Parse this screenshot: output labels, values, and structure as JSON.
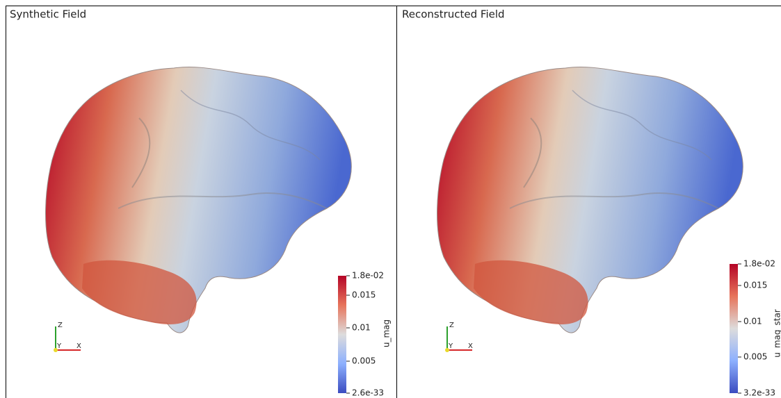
{
  "panels": [
    {
      "title": "Synthetic Field",
      "colorbar": {
        "label": "u_mag",
        "ticks": [
          "1.8e-02",
          "0.015",
          "0.01",
          "0.005",
          "2.6e-33"
        ]
      },
      "axes": {
        "z": "Z",
        "y": "Y",
        "x": "X"
      }
    },
    {
      "title": "Reconstructed Field",
      "colorbar": {
        "label": "u_mag_star",
        "ticks": [
          "1.8e-02",
          "0.015",
          "0.01",
          "0.005",
          "3.2e-33"
        ]
      },
      "axes": {
        "z": "Z",
        "y": "Y",
        "x": "X"
      }
    }
  ]
}
